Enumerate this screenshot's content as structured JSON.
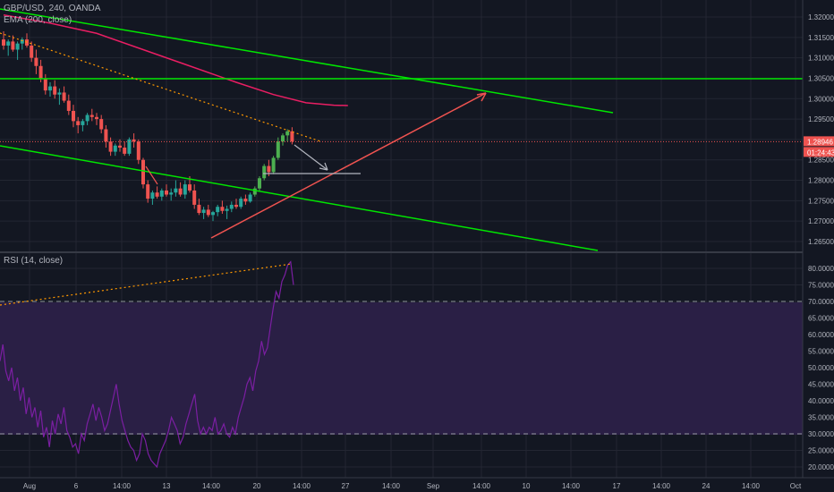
{
  "legend": {
    "symbol": "GBP/USD, 240, OANDA",
    "ema": "EMA (200, close)",
    "rsi": "RSI (14, close)"
  },
  "colors": {
    "background": "#131722",
    "grid": "#232632",
    "up": "#26a69a",
    "up_bright": "#4caf50",
    "down": "#ef5350",
    "ema": "#e91e63",
    "trendline": "#00e600",
    "arrow_up": "#ef5350",
    "arrow_down": "#b2b5be",
    "rsi_line": "#7b1fa2",
    "rsi_band": "#2a1f45",
    "dotted_trend": "#ff9800",
    "price_label": "#ef5350",
    "countdown_label": "#ef5350"
  },
  "price_axis": {
    "ticks": [
      "1.32000",
      "1.31500",
      "1.31000",
      "1.30500",
      "1.30000",
      "1.29500",
      "1.29000",
      "1.28500",
      "1.28000",
      "1.27500",
      "1.27000",
      "1.26500"
    ],
    "current_price": "1.28946",
    "countdown": "01:24:43"
  },
  "rsi_axis": {
    "ticks": [
      "80.0000",
      "75.0000",
      "70.0000",
      "65.0000",
      "60.0000",
      "55.0000",
      "50.0000",
      "45.0000",
      "40.0000",
      "35.0000",
      "30.0000",
      "25.0000",
      "20.0000"
    ],
    "upper_band": 70,
    "lower_band": 30
  },
  "time_axis": {
    "ticks": [
      "Aug",
      "6",
      "14:00",
      "13",
      "14:00",
      "20",
      "14:00",
      "27",
      "14:00",
      "Sep",
      "14:00",
      "10",
      "14:00",
      "17",
      "14:00",
      "24",
      "14:00",
      "Oct"
    ]
  },
  "chart_data": {
    "type": "candlestick",
    "symbol": "GBP/USD",
    "interval": "240",
    "price_ylim": [
      1.2625,
      1.3225
    ],
    "rsi_ylim": [
      18,
      83
    ],
    "candles": [
      [
        1.3145,
        1.3165,
        1.312,
        1.313
      ],
      [
        1.313,
        1.3145,
        1.3105,
        1.314
      ],
      [
        1.314,
        1.3155,
        1.3115,
        1.312
      ],
      [
        1.312,
        1.314,
        1.3095,
        1.3135
      ],
      [
        1.3135,
        1.315,
        1.312,
        1.3145
      ],
      [
        1.3145,
        1.316,
        1.3125,
        1.313
      ],
      [
        1.313,
        1.314,
        1.309,
        1.31
      ],
      [
        1.31,
        1.312,
        1.306,
        1.308
      ],
      [
        1.308,
        1.3095,
        1.304,
        1.305
      ],
      [
        1.305,
        1.306,
        1.301,
        1.302
      ],
      [
        1.302,
        1.304,
        1.3005,
        1.303
      ],
      [
        1.303,
        1.3045,
        1.3,
        1.301
      ],
      [
        1.301,
        1.3025,
        1.2985,
        1.3015
      ],
      [
        1.3015,
        1.303,
        1.299,
        1.2995
      ],
      [
        1.2995,
        1.301,
        1.296,
        1.297
      ],
      [
        1.297,
        1.2985,
        1.293,
        1.2945
      ],
      [
        1.2945,
        1.2955,
        1.2915,
        1.2935
      ],
      [
        1.2935,
        1.295,
        1.292,
        1.2945
      ],
      [
        1.2945,
        1.2965,
        1.2935,
        1.296
      ],
      [
        1.296,
        1.2975,
        1.2945,
        1.2955
      ],
      [
        1.2955,
        1.2965,
        1.2935,
        1.295
      ],
      [
        1.295,
        1.296,
        1.2915,
        1.2925
      ],
      [
        1.2925,
        1.2935,
        1.288,
        1.2895
      ],
      [
        1.2895,
        1.2905,
        1.286,
        1.287
      ],
      [
        1.287,
        1.289,
        1.286,
        1.2885
      ],
      [
        1.2885,
        1.29,
        1.287,
        1.288
      ],
      [
        1.288,
        1.2895,
        1.286,
        1.2865
      ],
      [
        1.2865,
        1.2905,
        1.286,
        1.29
      ],
      [
        1.29,
        1.2915,
        1.288,
        1.2895
      ],
      [
        1.2895,
        1.29,
        1.284,
        1.285
      ],
      [
        1.285,
        1.2855,
        1.278,
        1.279
      ],
      [
        1.279,
        1.28,
        1.2745,
        1.2755
      ],
      [
        1.2755,
        1.2775,
        1.274,
        1.277
      ],
      [
        1.277,
        1.2785,
        1.2755,
        1.276
      ],
      [
        1.276,
        1.278,
        1.275,
        1.2775
      ],
      [
        1.2775,
        1.279,
        1.276,
        1.2765
      ],
      [
        1.2765,
        1.278,
        1.275,
        1.277
      ],
      [
        1.277,
        1.28,
        1.276,
        1.278
      ],
      [
        1.278,
        1.2795,
        1.276,
        1.2765
      ],
      [
        1.2765,
        1.28,
        1.2755,
        1.279
      ],
      [
        1.279,
        1.281,
        1.277,
        1.2775
      ],
      [
        1.2775,
        1.279,
        1.273,
        1.274
      ],
      [
        1.274,
        1.2755,
        1.2715,
        1.272
      ],
      [
        1.272,
        1.2735,
        1.2705,
        1.2728
      ],
      [
        1.2728,
        1.274,
        1.271,
        1.2715
      ],
      [
        1.2715,
        1.2725,
        1.27,
        1.2722
      ],
      [
        1.2722,
        1.274,
        1.2712,
        1.2735
      ],
      [
        1.2735,
        1.275,
        1.2718,
        1.2725
      ],
      [
        1.2725,
        1.2738,
        1.2705,
        1.273
      ],
      [
        1.273,
        1.2748,
        1.2722,
        1.274
      ],
      [
        1.274,
        1.2755,
        1.273,
        1.2735
      ],
      [
        1.2735,
        1.276,
        1.273,
        1.2755
      ],
      [
        1.2755,
        1.2765,
        1.274,
        1.2748
      ],
      [
        1.2748,
        1.277,
        1.2745,
        1.2765
      ],
      [
        1.2765,
        1.2785,
        1.276,
        1.278
      ],
      [
        1.278,
        1.281,
        1.2775,
        1.2805
      ],
      [
        1.2805,
        1.284,
        1.28,
        1.2835
      ],
      [
        1.2835,
        1.285,
        1.281,
        1.282
      ],
      [
        1.282,
        1.286,
        1.2815,
        1.2855
      ],
      [
        1.2855,
        1.2905,
        1.285,
        1.2895
      ],
      [
        1.2895,
        1.2915,
        1.2885,
        1.291
      ],
      [
        1.291,
        1.2925,
        1.2895,
        1.292
      ],
      [
        1.292,
        1.293,
        1.2888,
        1.2895
      ]
    ],
    "ema_200": [
      [
        0,
        1.3205
      ],
      [
        10,
        1.3185
      ],
      [
        20,
        1.316
      ],
      [
        30,
        1.312
      ],
      [
        40,
        1.308
      ],
      [
        50,
        1.304
      ],
      [
        58,
        1.301
      ],
      [
        65,
        1.299
      ],
      [
        71,
        1.2984
      ],
      [
        74,
        1.2983
      ]
    ],
    "rsi_14": [
      52,
      57,
      49,
      46,
      50,
      43,
      47,
      40,
      44,
      36,
      41,
      35,
      38,
      32,
      37,
      29,
      32,
      26,
      34,
      30,
      36,
      33,
      38,
      31,
      29,
      26,
      27,
      24,
      30,
      28,
      33,
      36,
      39,
      34,
      38,
      35,
      31,
      33,
      37,
      41,
      45,
      39,
      34,
      31,
      28,
      26,
      25,
      22,
      24,
      30,
      28,
      24,
      22,
      21,
      20,
      24,
      26,
      28,
      31,
      35,
      33,
      31,
      27,
      29,
      33,
      36,
      39,
      42,
      34,
      30,
      32,
      30,
      32,
      31,
      35,
      30,
      31,
      33,
      30,
      29,
      32,
      30,
      35,
      38,
      41,
      45,
      47,
      43,
      49,
      52,
      58,
      54,
      56,
      62,
      68,
      73,
      71,
      76,
      78,
      81,
      82,
      75
    ]
  }
}
